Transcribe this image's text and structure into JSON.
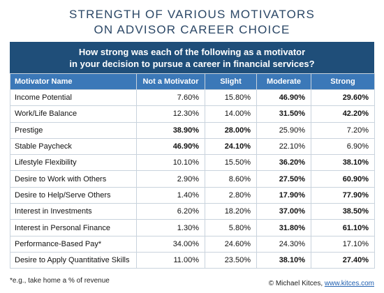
{
  "title": [
    "STRENGTH OF VARIOUS MOTIVATORS",
    "ON ADVISOR CAREER CHOICE"
  ],
  "question": [
    "How strong was each of the following as a motivator",
    "in your decision to pursue a career in financial services?"
  ],
  "table": {
    "columns": [
      "Motivator Name",
      "Not a Motivator",
      "Slight",
      "Moderate",
      "Strong"
    ],
    "rows": [
      [
        "Income Potential",
        "7.60%",
        "15.80%",
        "46.90%",
        "29.60%"
      ],
      [
        "Work/Life Balance",
        "12.30%",
        "14.00%",
        "31.50%",
        "42.20%"
      ],
      [
        "Prestige",
        "38.90%",
        "28.00%",
        "25.90%",
        "7.20%"
      ],
      [
        "Stable Paycheck",
        "46.90%",
        "24.10%",
        "22.10%",
        "6.90%"
      ],
      [
        "Lifestyle Flexibility",
        "10.10%",
        "15.50%",
        "36.20%",
        "38.10%"
      ],
      [
        "Desire to Work with Others",
        "2.90%",
        "8.60%",
        "27.50%",
        "60.90%"
      ],
      [
        "Desire to Help/Serve Others",
        "1.40%",
        "2.80%",
        "17.90%",
        "77.90%"
      ],
      [
        "Interest in Investments",
        "6.20%",
        "18.20%",
        "37.00%",
        "38.50%"
      ],
      [
        "Interest in Personal Finance",
        "1.30%",
        "5.80%",
        "31.80%",
        "61.10%"
      ],
      [
        "Performance-Based Pay*",
        "34.00%",
        "24.60%",
        "24.30%",
        "17.10%"
      ],
      [
        "Desire to Apply Quantitative Skills",
        "11.00%",
        "23.50%",
        "38.10%",
        "27.40%"
      ]
    ]
  },
  "footnote": "*e.g., take home a % of revenue",
  "credit": {
    "text": "© Michael Kitces, ",
    "link": "www.kitces.com"
  }
}
